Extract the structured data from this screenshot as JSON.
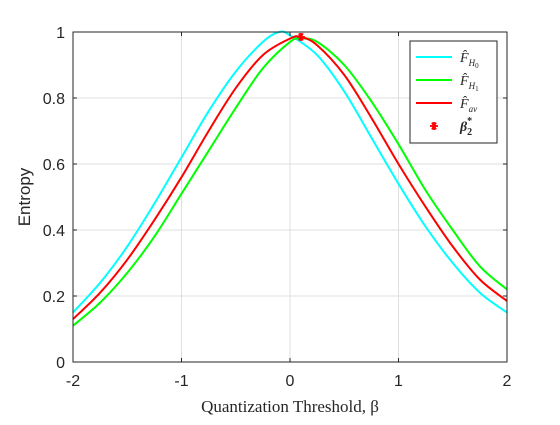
{
  "chart_data": {
    "type": "line",
    "title": "",
    "xlabel": "Quantization Threshold, β",
    "ylabel": "Entropy",
    "xlim": [
      -2,
      2
    ],
    "ylim": [
      0,
      1
    ],
    "xticks": [
      -2,
      -1,
      0,
      1,
      2
    ],
    "yticks": [
      0,
      0.2,
      0.4,
      0.6,
      0.8,
      1
    ],
    "xtick_labels": [
      "-2",
      "-1",
      "0",
      "1",
      "2"
    ],
    "ytick_labels": [
      "0",
      "0.2",
      "0.4",
      "0.6",
      "0.8",
      "1"
    ],
    "grid": true,
    "legend_position": "top-right",
    "series": [
      {
        "name": "F̂_H0",
        "color": "#00ffff",
        "x": [
          -2,
          -1.75,
          -1.5,
          -1.25,
          -1,
          -0.75,
          -0.5,
          -0.25,
          -0.1,
          0,
          0.25,
          0.5,
          0.75,
          1,
          1.25,
          1.5,
          1.75,
          2
        ],
        "y": [
          0.15,
          0.24,
          0.35,
          0.48,
          0.62,
          0.76,
          0.88,
          0.97,
          1.0,
          0.99,
          0.93,
          0.82,
          0.68,
          0.54,
          0.41,
          0.3,
          0.21,
          0.15
        ]
      },
      {
        "name": "F̂_H1",
        "color": "#00ff00",
        "x": [
          -2,
          -1.75,
          -1.5,
          -1.25,
          -1,
          -0.75,
          -0.5,
          -0.25,
          0,
          0.1,
          0.25,
          0.5,
          0.75,
          1,
          1.25,
          1.5,
          1.75,
          2
        ],
        "y": [
          0.11,
          0.18,
          0.27,
          0.38,
          0.51,
          0.64,
          0.77,
          0.89,
          0.97,
          0.98,
          0.97,
          0.9,
          0.79,
          0.66,
          0.52,
          0.4,
          0.29,
          0.22
        ]
      },
      {
        "name": "F̂_av",
        "color": "#ff0000",
        "x": [
          -2,
          -1.75,
          -1.5,
          -1.25,
          -1,
          -0.75,
          -0.5,
          -0.25,
          0,
          0.1,
          0.25,
          0.5,
          0.75,
          1,
          1.25,
          1.5,
          1.75,
          2
        ],
        "y": [
          0.13,
          0.21,
          0.31,
          0.43,
          0.56,
          0.7,
          0.83,
          0.93,
          0.98,
          0.985,
          0.96,
          0.87,
          0.74,
          0.6,
          0.47,
          0.35,
          0.25,
          0.185
        ]
      }
    ],
    "markers": [
      {
        "name": "β*₂",
        "color": "#ff0000",
        "x": 0.1,
        "y": 0.985
      }
    ],
    "legend": [
      {
        "base": "F̂",
        "sub": "H",
        "subsub": "0",
        "color": "#00ffff",
        "kind": "line"
      },
      {
        "base": "F̂",
        "sub": "H",
        "subsub": "1",
        "color": "#00ff00",
        "kind": "line"
      },
      {
        "base": "F̂",
        "sub": "av",
        "subsub": "",
        "color": "#ff0000",
        "kind": "line"
      },
      {
        "base": "β",
        "sub": "2",
        "sup": "*",
        "color": "#ff0000",
        "kind": "marker"
      }
    ]
  }
}
